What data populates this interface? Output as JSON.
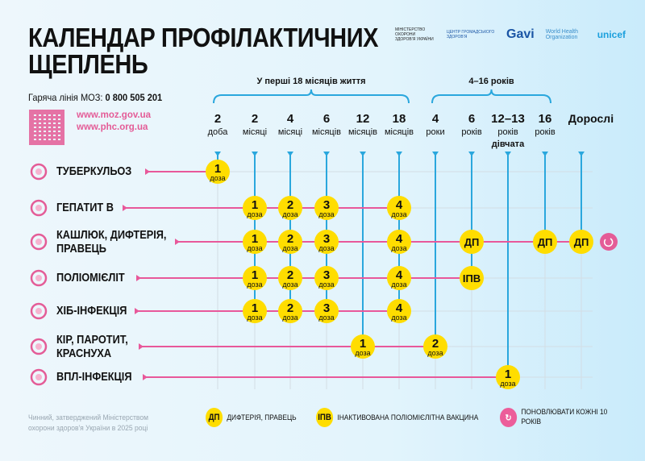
{
  "title": "КАЛЕНДАР ПРОФІЛАКТИЧНИХ ЩЕПЛЕНЬ",
  "hotline_label": "Гаряча лінія МОЗ:",
  "hotline_number": "0 800 505 201",
  "urls": [
    "www.moz.gov.ua",
    "www.phc.org.ua"
  ],
  "logos": {
    "moz": "МІНІСТЕРСТВО ОХОРОНИ ЗДОРОВ'Я УКРАЇНИ",
    "phc": "ЦЕНТР ГРОМАДСЬКОГО ЗДОРОВ'Я",
    "gavi": "Gavi",
    "who": "World Health Organization",
    "unicef": "unicef"
  },
  "groups": [
    {
      "label": "У перші 18 місяців життя"
    },
    {
      "label": "4–16 років"
    }
  ],
  "columns": [
    {
      "num": "2",
      "unit": "доба"
    },
    {
      "num": "2",
      "unit": "місяці"
    },
    {
      "num": "4",
      "unit": "місяці"
    },
    {
      "num": "6",
      "unit": "місяців"
    },
    {
      "num": "12",
      "unit": "місяців"
    },
    {
      "num": "18",
      "unit": "місяців"
    },
    {
      "num": "4",
      "unit": "роки"
    },
    {
      "num": "6",
      "unit": "років"
    },
    {
      "num": "12–13",
      "unit": "років",
      "extra": "дівчата"
    },
    {
      "num": "16",
      "unit": "років"
    },
    {
      "num": "Дорослі",
      "unit": ""
    }
  ],
  "dose_word": "доза",
  "rows": [
    {
      "label": "ТУБЕРКУЛЬОЗ",
      "doses": [
        [
          0,
          "1"
        ]
      ]
    },
    {
      "label": "ГЕПАТИТ В",
      "doses": [
        [
          1,
          "1"
        ],
        [
          2,
          "2"
        ],
        [
          3,
          "3"
        ],
        [
          5,
          "4"
        ]
      ]
    },
    {
      "label": "КАШЛЮК, ДИФТЕРІЯ, ПРАВЕЦЬ",
      "doses": [
        [
          1,
          "1"
        ],
        [
          2,
          "2"
        ],
        [
          3,
          "3"
        ],
        [
          5,
          "4"
        ],
        [
          7,
          "ДП"
        ],
        [
          9,
          "ДП"
        ],
        [
          10,
          "ДП"
        ]
      ],
      "renew": true
    },
    {
      "label": "ПОЛІОМІЄЛІТ",
      "doses": [
        [
          1,
          "1"
        ],
        [
          2,
          "2"
        ],
        [
          3,
          "3"
        ],
        [
          5,
          "4"
        ],
        [
          7,
          "ІПВ"
        ]
      ]
    },
    {
      "label": "ХІБ-ІНФЕКЦІЯ",
      "doses": [
        [
          1,
          "1"
        ],
        [
          2,
          "2"
        ],
        [
          3,
          "3"
        ],
        [
          5,
          "4"
        ]
      ]
    },
    {
      "label": "КІР, ПАРОТИТ, КРАСНУХА",
      "doses": [
        [
          4,
          "1"
        ],
        [
          6,
          "2"
        ]
      ]
    },
    {
      "label": "ВПЛ-ІНФЕКЦІЯ",
      "doses": [
        [
          8,
          "1"
        ]
      ]
    }
  ],
  "footnote": "Чинний, затверджений Міністерством охорони здоров'я України в 2025 році",
  "legend": [
    {
      "badge": "ДП",
      "text": "ДИФТЕРІЯ, ПРАВЕЦЬ"
    },
    {
      "badge": "ІПВ",
      "text": "ІНАКТИВОВАНА ПОЛІОМІЄЛІТНА ВАКЦИНА"
    },
    {
      "icon": "refresh-icon",
      "text": "ПОНОВЛЮВАТИ КОЖНІ 10 РОКІВ"
    }
  ],
  "colors": {
    "dose": "#ffdd00",
    "row_line": "#e8589a",
    "column_line": "#2aa7dd",
    "grid": "#d3dde4",
    "accent_pink": "#e45c97"
  }
}
